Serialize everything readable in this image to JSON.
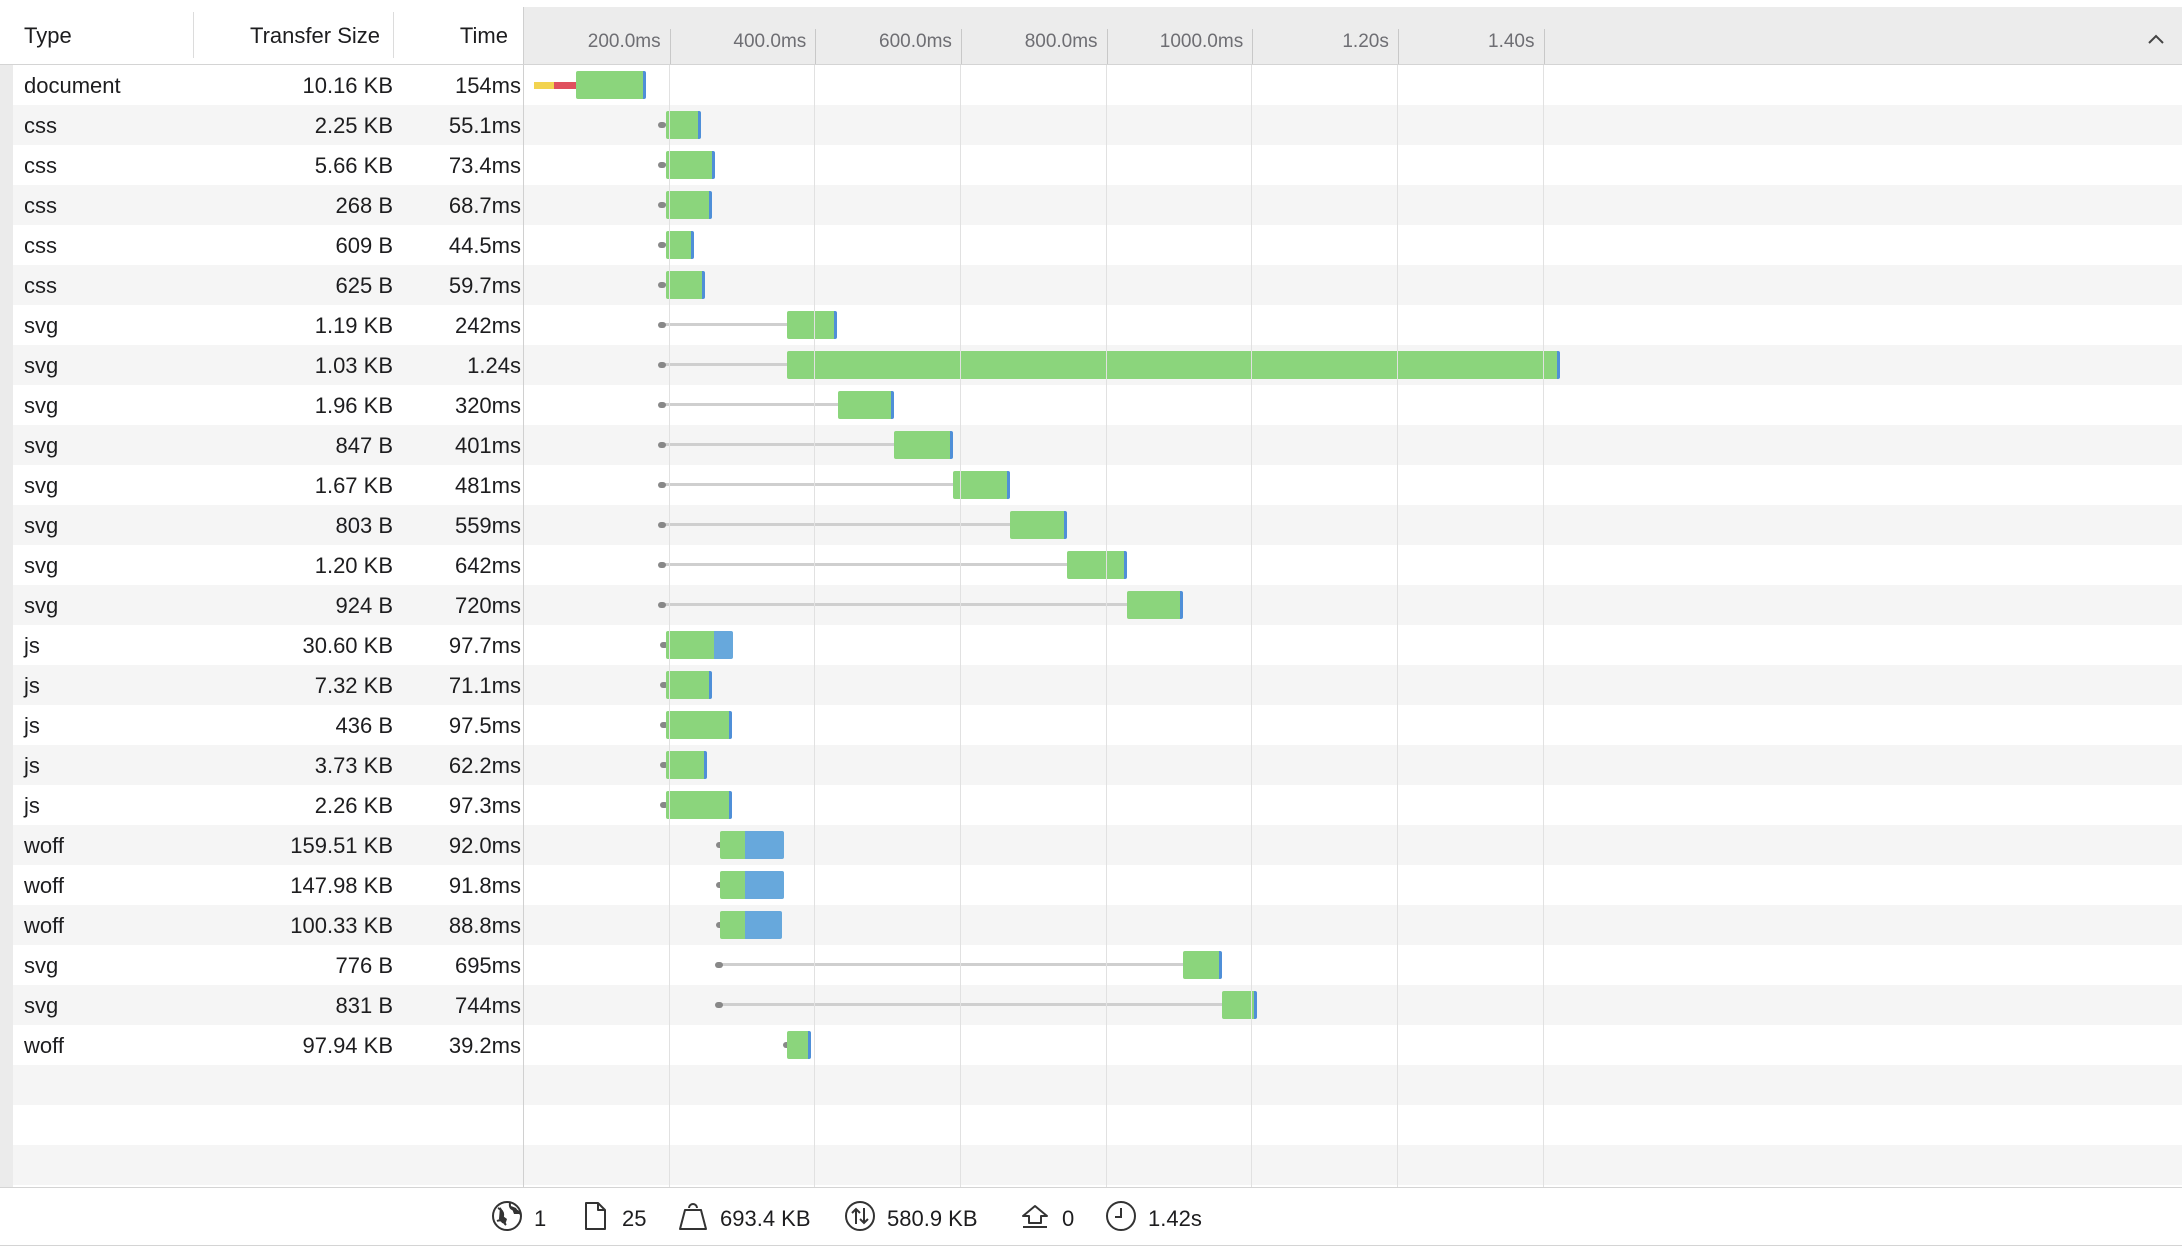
{
  "columns": {
    "type": "Type",
    "transfer_size": "Transfer Size",
    "time": "Time"
  },
  "timeline": {
    "ticks": [
      "200.0ms",
      "400.0ms",
      "600.0ms",
      "800.0ms",
      "1000.0ms",
      "1.20s",
      "1.40s"
    ],
    "tick_ms": [
      200,
      400,
      600,
      800,
      1000,
      1200,
      1400
    ]
  },
  "requests": [
    {
      "type": "document",
      "size": "10.16 KB",
      "time": "154ms",
      "queue_ms": 15,
      "start_ms": 73,
      "end_ms": 169,
      "recv_ms": 2,
      "dns_ms": [
        15,
        42
      ],
      "conn_ms": [
        42,
        73
      ]
    },
    {
      "type": "css",
      "size": "2.25 KB",
      "time": "55.1ms",
      "queue_ms": 190,
      "start_ms": 197,
      "end_ms": 245,
      "recv_ms": 2
    },
    {
      "type": "css",
      "size": "5.66 KB",
      "time": "73.4ms",
      "queue_ms": 190,
      "start_ms": 197,
      "end_ms": 263,
      "recv_ms": 2
    },
    {
      "type": "css",
      "size": "268 B",
      "time": "68.7ms",
      "queue_ms": 190,
      "start_ms": 197,
      "end_ms": 260,
      "recv_ms": 2
    },
    {
      "type": "css",
      "size": "609 B",
      "time": "44.5ms",
      "queue_ms": 190,
      "start_ms": 197,
      "end_ms": 235,
      "recv_ms": 2
    },
    {
      "type": "css",
      "size": "625 B",
      "time": "59.7ms",
      "queue_ms": 190,
      "start_ms": 197,
      "end_ms": 250,
      "recv_ms": 2
    },
    {
      "type": "svg",
      "size": "1.19 KB",
      "time": "242ms",
      "queue_ms": 189,
      "start_ms": 362,
      "end_ms": 431,
      "recv_ms": 2
    },
    {
      "type": "svg",
      "size": "1.03 KB",
      "time": "1.24s",
      "queue_ms": 189,
      "start_ms": 362,
      "end_ms": 1424,
      "recv_ms": 2
    },
    {
      "type": "svg",
      "size": "1.96 KB",
      "time": "320ms",
      "queue_ms": 189,
      "start_ms": 433,
      "end_ms": 510,
      "recv_ms": 2
    },
    {
      "type": "svg",
      "size": "847 B",
      "time": "401ms",
      "queue_ms": 189,
      "start_ms": 510,
      "end_ms": 590,
      "recv_ms": 2
    },
    {
      "type": "svg",
      "size": "1.67 KB",
      "time": "481ms",
      "queue_ms": 189,
      "start_ms": 590,
      "end_ms": 669,
      "recv_ms": 2
    },
    {
      "type": "svg",
      "size": "803 B",
      "time": "559ms",
      "queue_ms": 189,
      "start_ms": 669,
      "end_ms": 747,
      "recv_ms": 2
    },
    {
      "type": "svg",
      "size": "1.20 KB",
      "time": "642ms",
      "queue_ms": 189,
      "start_ms": 747,
      "end_ms": 830,
      "recv_ms": 2
    },
    {
      "type": "svg",
      "size": "924 B",
      "time": "720ms",
      "queue_ms": 189,
      "start_ms": 830,
      "end_ms": 907,
      "recv_ms": 2
    },
    {
      "type": "js",
      "size": "30.60 KB",
      "time": "97.7ms",
      "queue_ms": 192,
      "start_ms": 197,
      "end_ms": 262,
      "recv_ms": 27
    },
    {
      "type": "js",
      "size": "7.32 KB",
      "time": "71.1ms",
      "queue_ms": 192,
      "start_ms": 197,
      "end_ms": 260,
      "recv_ms": 2
    },
    {
      "type": "js",
      "size": "436 B",
      "time": "97.5ms",
      "queue_ms": 192,
      "start_ms": 197,
      "end_ms": 287,
      "recv_ms": 2
    },
    {
      "type": "js",
      "size": "3.73 KB",
      "time": "62.2ms",
      "queue_ms": 192,
      "start_ms": 197,
      "end_ms": 253,
      "recv_ms": 2
    },
    {
      "type": "js",
      "size": "2.26 KB",
      "time": "97.3ms",
      "queue_ms": 192,
      "start_ms": 197,
      "end_ms": 287,
      "recv_ms": 2
    },
    {
      "type": "woff",
      "size": "159.51 KB",
      "time": "92.0ms",
      "queue_ms": 269,
      "start_ms": 271,
      "end_ms": 305,
      "recv_ms": 54
    },
    {
      "type": "woff",
      "size": "147.98 KB",
      "time": "91.8ms",
      "queue_ms": 269,
      "start_ms": 271,
      "end_ms": 305,
      "recv_ms": 54
    },
    {
      "type": "woff",
      "size": "100.33 KB",
      "time": "88.8ms",
      "queue_ms": 269,
      "start_ms": 271,
      "end_ms": 305,
      "recv_ms": 50
    },
    {
      "type": "svg",
      "size": "776 B",
      "time": "695ms",
      "queue_ms": 268,
      "start_ms": 907,
      "end_ms": 960,
      "recv_ms": 2
    },
    {
      "type": "svg",
      "size": "831 B",
      "time": "744ms",
      "queue_ms": 268,
      "start_ms": 960,
      "end_ms": 1008,
      "recv_ms": 2
    },
    {
      "type": "woff",
      "size": "97.94 KB",
      "time": "39.2ms",
      "queue_ms": 361,
      "start_ms": 363,
      "end_ms": 396,
      "recv_ms": 2
    }
  ],
  "footer": {
    "domains": "1",
    "requests": "25",
    "resources_size": "693.4 KB",
    "transferred": "580.9 KB",
    "redirects": "0",
    "load_time": "1.42s"
  },
  "colors": {
    "waiting": "#8bd57c",
    "receiving": "#67a8dc",
    "dns": "#f2d34f",
    "connect": "#e0505e"
  },
  "icons": [
    "globe-icon",
    "document-icon",
    "weight-icon",
    "transfer-icon",
    "redirect-icon",
    "clock-icon",
    "chevron-up-icon"
  ]
}
